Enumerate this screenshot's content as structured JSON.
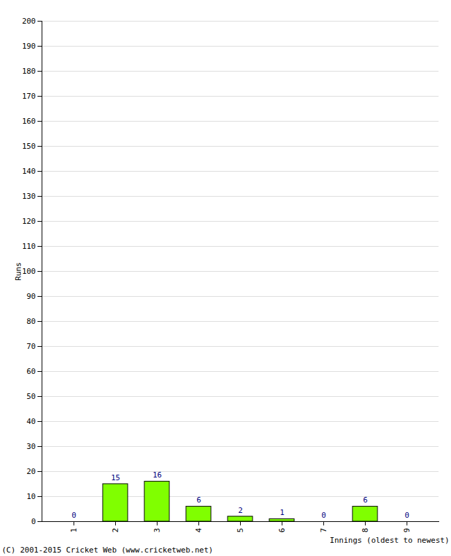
{
  "chart_data": {
    "type": "bar",
    "categories": [
      "1",
      "2",
      "3",
      "4",
      "5",
      "6",
      "7",
      "8",
      "9"
    ],
    "values": [
      0,
      15,
      16,
      6,
      2,
      1,
      0,
      6,
      0
    ],
    "color": "#80ff00",
    "xlabel": "Innings (oldest to newest)",
    "ylabel": "Runs",
    "caption": "(C) 2001-2015 Cricket Web (www.cricketweb.net)",
    "ylim": [
      0,
      200
    ],
    "yticks": [
      0,
      10,
      20,
      30,
      40,
      50,
      60,
      70,
      80,
      90,
      100,
      110,
      120,
      130,
      140,
      150,
      160,
      170,
      180,
      190,
      200
    ],
    "grid": true,
    "data_labels": true
  }
}
